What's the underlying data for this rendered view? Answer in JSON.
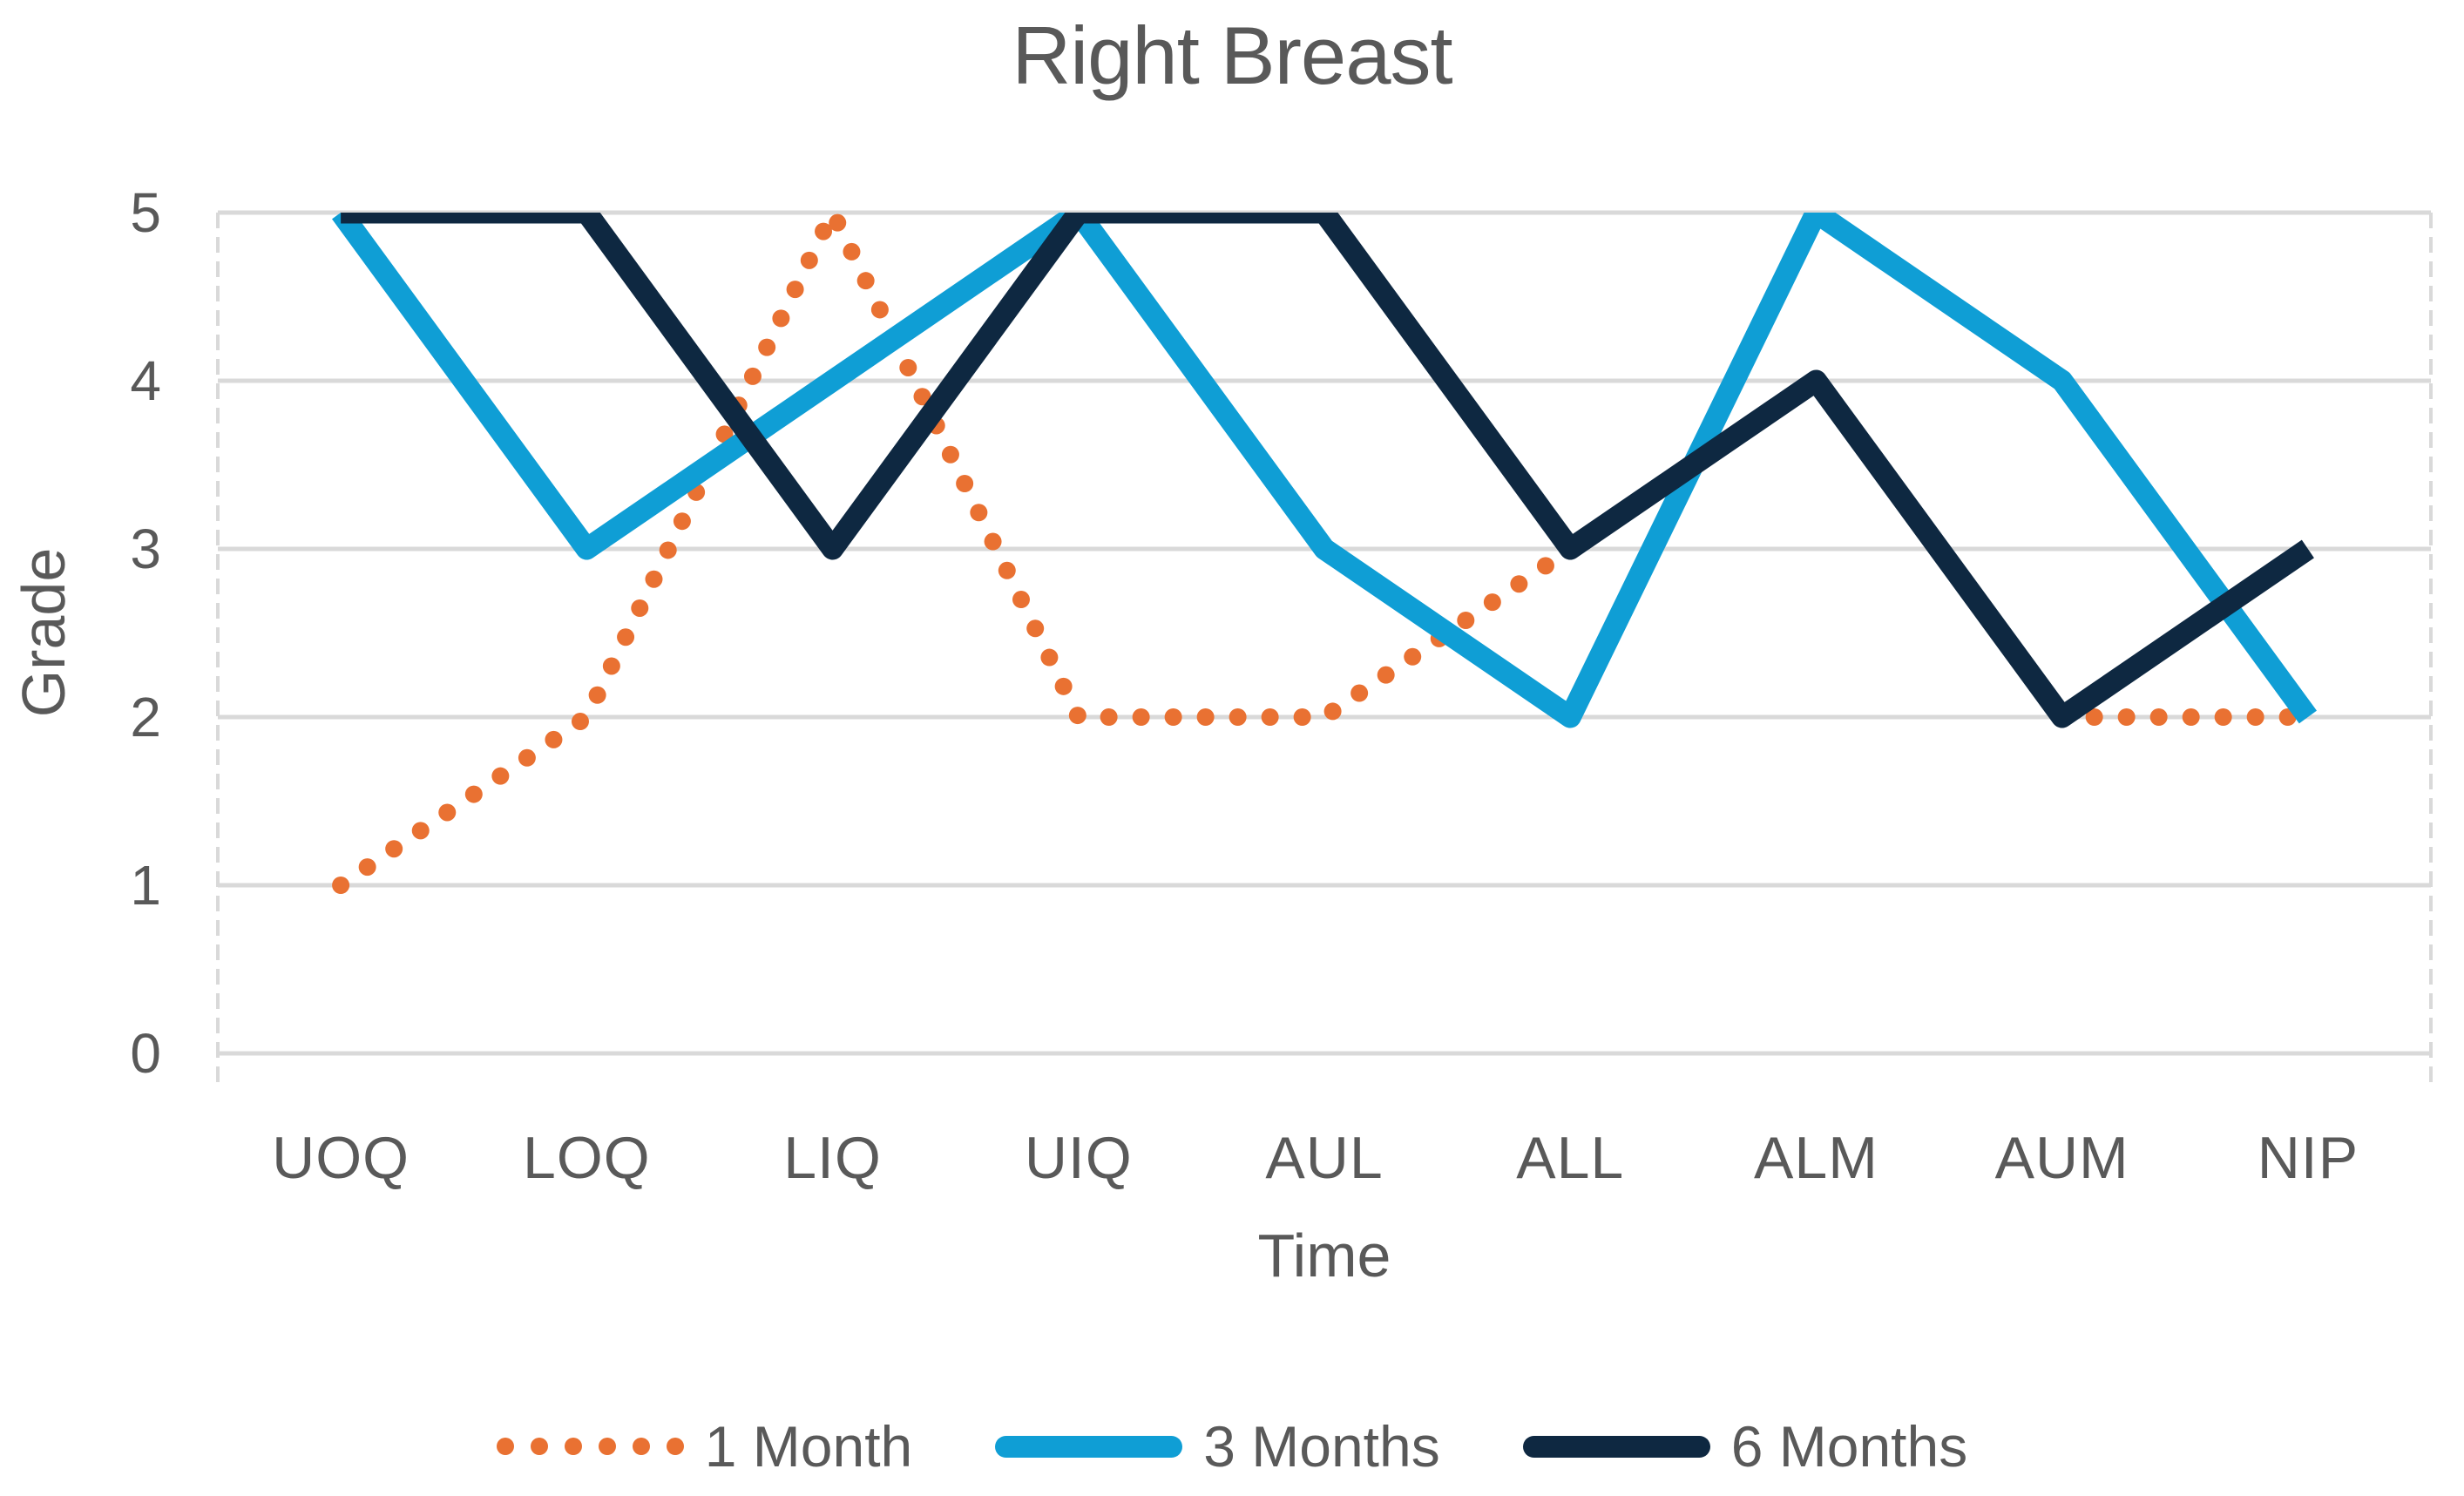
{
  "title": "Right Breast",
  "chart_data": {
    "type": "line",
    "title": "Right Breast",
    "xlabel": "Time",
    "ylabel": "Grade",
    "ylim": [
      0,
      5
    ],
    "y_ticks": [
      0,
      1,
      2,
      3,
      4,
      5
    ],
    "grid": true,
    "legend_position": "bottom",
    "categories": [
      "UOQ",
      "LOQ",
      "LIQ",
      "UIQ",
      "AUL",
      "ALL",
      "ALM",
      "AUM",
      "NIP"
    ],
    "series": [
      {
        "name": "1 Month",
        "style": "dotted",
        "color": "#E97132",
        "values": [
          1,
          2,
          5,
          2,
          2,
          3,
          null,
          2,
          2
        ]
      },
      {
        "name": "3 Months",
        "style": "solid",
        "color": "#0F9ED5",
        "values": [
          5,
          3,
          4,
          5,
          3,
          2,
          5,
          4,
          2
        ]
      },
      {
        "name": "6 Months",
        "style": "solid",
        "color": "#0E2841",
        "values": [
          5,
          5,
          3,
          5,
          5,
          3,
          4,
          2,
          3
        ]
      }
    ],
    "gridline_color": "#D9D9D9",
    "axis_line_color": "#D9D9D9",
    "text_color": "#595959"
  }
}
